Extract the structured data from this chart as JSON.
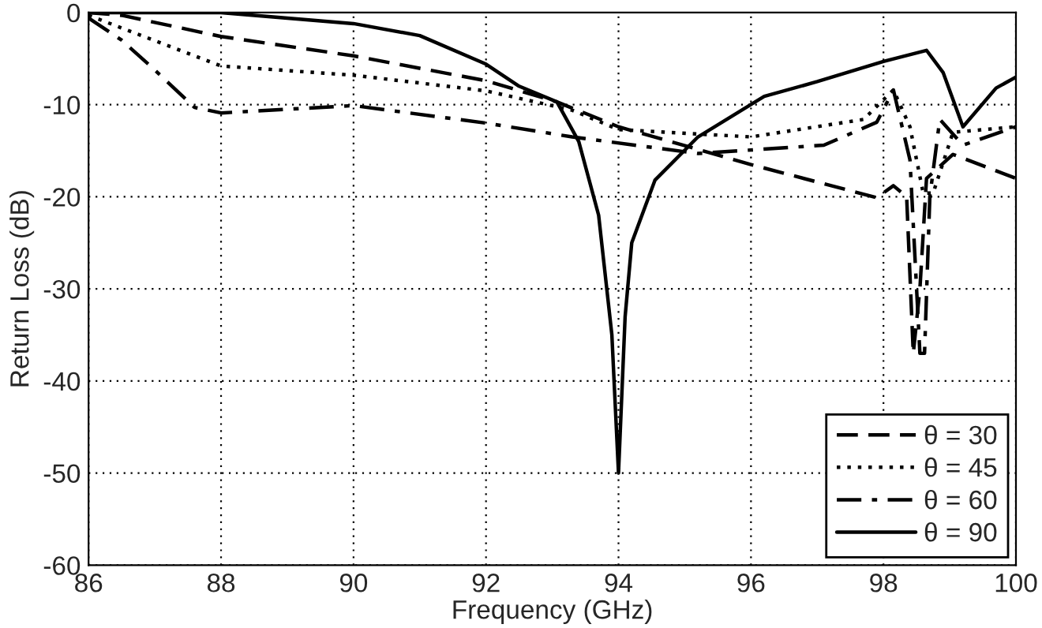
{
  "chart_data": {
    "type": "line",
    "xlabel": "Frequency (GHz)",
    "ylabel": "Return Loss (dB)",
    "xlim": [
      86,
      100
    ],
    "xticks": [
      86,
      88,
      90,
      92,
      94,
      96,
      98,
      100
    ],
    "ylim": [
      -60,
      0
    ],
    "yticks": [
      -60,
      -50,
      -40,
      -30,
      -20,
      -10,
      0
    ],
    "grid": true,
    "legend": "bottom right",
    "marker": "none",
    "series": [
      {
        "name": "θ = 30",
        "color": "#000000",
        "line_style": "dashed",
        "x": [
          86,
          86.5,
          88,
          90,
          92,
          93.07,
          94,
          96,
          97.9,
          98.15,
          98.35,
          98.45,
          98.55,
          98.65,
          99.05,
          100
        ],
        "values": [
          0,
          -0.3,
          -2.6,
          -4.7,
          -7.4,
          -9.7,
          -12.4,
          -16.5,
          -20.1,
          -18.8,
          -20,
          -37,
          -30,
          -18,
          -15.4,
          -18
        ]
      },
      {
        "name": "θ = 45",
        "color": "#000000",
        "line_style": "dotted",
        "x": [
          86,
          88,
          90,
          92,
          93.3,
          94,
          96,
          97.7,
          98.15,
          98.4,
          98.6,
          98.75,
          99.05,
          100
        ],
        "values": [
          -0.3,
          -5.8,
          -6.8,
          -8.5,
          -10.6,
          -12.7,
          -13.5,
          -11.6,
          -8.4,
          -12.4,
          -19.6,
          -19.6,
          -13,
          -12.4
        ]
      },
      {
        "name": "θ = 60",
        "color": "#000000",
        "line_style": "dashdot",
        "x": [
          86,
          86.5,
          86.95,
          87.6,
          88,
          90,
          92,
          93.3,
          95.2,
          97.1,
          97.9,
          98.15,
          98.4,
          98.55,
          98.62,
          98.7,
          98.85,
          99.2,
          100
        ],
        "values": [
          -0.6,
          -3,
          -5.9,
          -10.3,
          -10.9,
          -10.1,
          -12,
          -13.5,
          -15.3,
          -14.4,
          -11.9,
          -8.4,
          -16,
          -37,
          -37,
          -20,
          -11.6,
          -14.4,
          -12.4
        ]
      },
      {
        "name": "θ = 90",
        "color": "#000000",
        "line_style": "solid",
        "x": [
          86,
          88,
          90,
          91,
          92,
          92.5,
          93.07,
          93.4,
          93.7,
          93.9,
          94.0,
          94.1,
          94.2,
          94.55,
          95.2,
          96.2,
          97,
          98,
          98.65,
          98.9,
          99.2,
          99.7,
          100
        ],
        "values": [
          0,
          0,
          -1.2,
          -2.5,
          -5.6,
          -8,
          -9.7,
          -14,
          -22,
          -35,
          -50,
          -33,
          -25,
          -18.2,
          -13.5,
          -9.1,
          -7.5,
          -5.3,
          -4.1,
          -6.5,
          -12.4,
          -8.2,
          -7
        ]
      }
    ]
  }
}
